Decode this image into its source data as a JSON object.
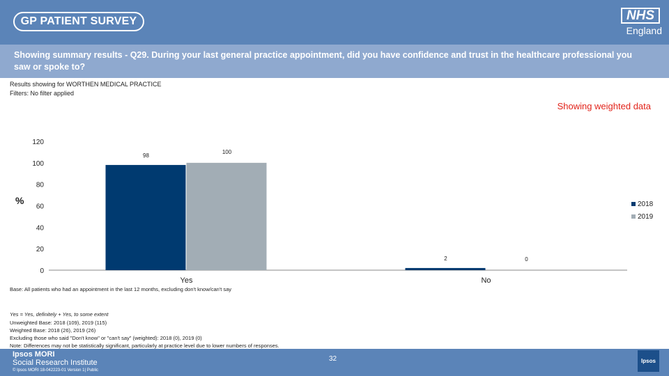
{
  "header": {
    "logo": "GP PATIENT SURVEY",
    "nhs_logo": "NHS",
    "nhs_sub": "England"
  },
  "question": "Showing summary results - Q29.  During your last general practice appointment, did you have confidence and trust in the healthcare professional you saw or spoke to?",
  "meta": {
    "practice": "Results showing for WORTHEN MEDICAL PRACTICE",
    "filters": "Filters: No filter applied",
    "weighted": "Showing weighted data"
  },
  "chart_data": {
    "type": "bar",
    "categories": [
      "Yes",
      "No"
    ],
    "series": [
      {
        "name": "2018",
        "values": [
          98,
          2
        ],
        "color": "#003a70"
      },
      {
        "name": "2019",
        "values": [
          100,
          0
        ],
        "color": "#a2adb5"
      }
    ],
    "ylabel": "%",
    "ylim": [
      0,
      120
    ],
    "yticks": [
      0,
      20,
      40,
      60,
      80,
      100,
      120
    ],
    "legend": "right"
  },
  "notes": {
    "base": "Base: All patients who had an appointment in the last 12 months, excluding don't know/can't say",
    "lines": [
      "Yes = Yes, definitely + Yes, to some extent",
      "Unweighted Base: 2018 (109), 2019 (115)",
      "Weighted Base: 2018 (26), 2019 (26)",
      "Excluding those who said \"Don't know\" or \"can't say\" (weighted):  2018 (0), 2019 (0)",
      "Note: Differences may not be statistically significant, particularly at practice level due to lower numbers of responses."
    ]
  },
  "footer": {
    "org1": "Ipsos MORI",
    "org2": "Social Research Institute",
    "copyright": "© Ipsos MORI       18-042223-01 Version 1| Public",
    "page": "32",
    "logo": "Ipsos"
  }
}
